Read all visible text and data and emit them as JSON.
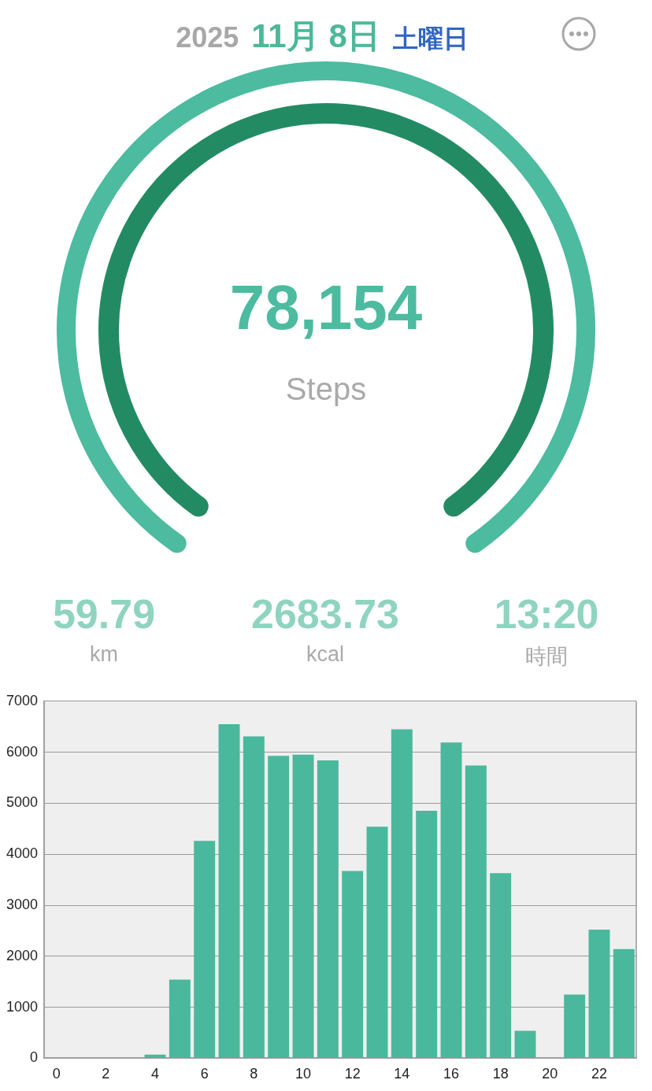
{
  "chart_data": [
    {
      "type": "other",
      "annotations": [
        "2025",
        "11月 8日",
        "土曜日",
        "78,154",
        "Steps",
        "59.79",
        "km",
        "2683.73",
        "kcal",
        "13:20",
        "時間"
      ]
    },
    {
      "type": "bar",
      "categories": [
        "0",
        null,
        "2",
        null,
        "4",
        null,
        "6",
        null,
        "8",
        null,
        "10",
        null,
        "12",
        null,
        "14",
        null,
        "16",
        null,
        "18",
        null,
        "20",
        null,
        "22",
        null
      ],
      "values": [
        0,
        0,
        0,
        0,
        70,
        1540,
        4260,
        6550,
        6310,
        5930,
        5950,
        5840,
        3670,
        4540,
        6450,
        4850,
        6190,
        5740,
        3630,
        540,
        0,
        1250,
        2520,
        2140
      ],
      "color": "#4ab89c",
      "ylim": [
        0,
        7000
      ],
      "yticks": [
        0,
        1000,
        2000,
        3000,
        4000,
        5000,
        6000,
        7000
      ],
      "grid": "y",
      "legend": false
    }
  ]
}
